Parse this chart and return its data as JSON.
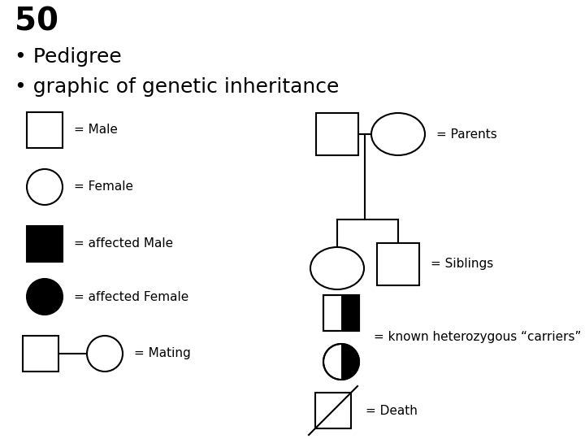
{
  "title_number": "50",
  "bullet1": "Pedigree",
  "bullet2": "graphic of genetic inheritance",
  "bg_color": "#ffffff",
  "title_fontsize": 28,
  "bullet_fontsize": 18,
  "label_fontsize": 11,
  "lw": 1.5
}
